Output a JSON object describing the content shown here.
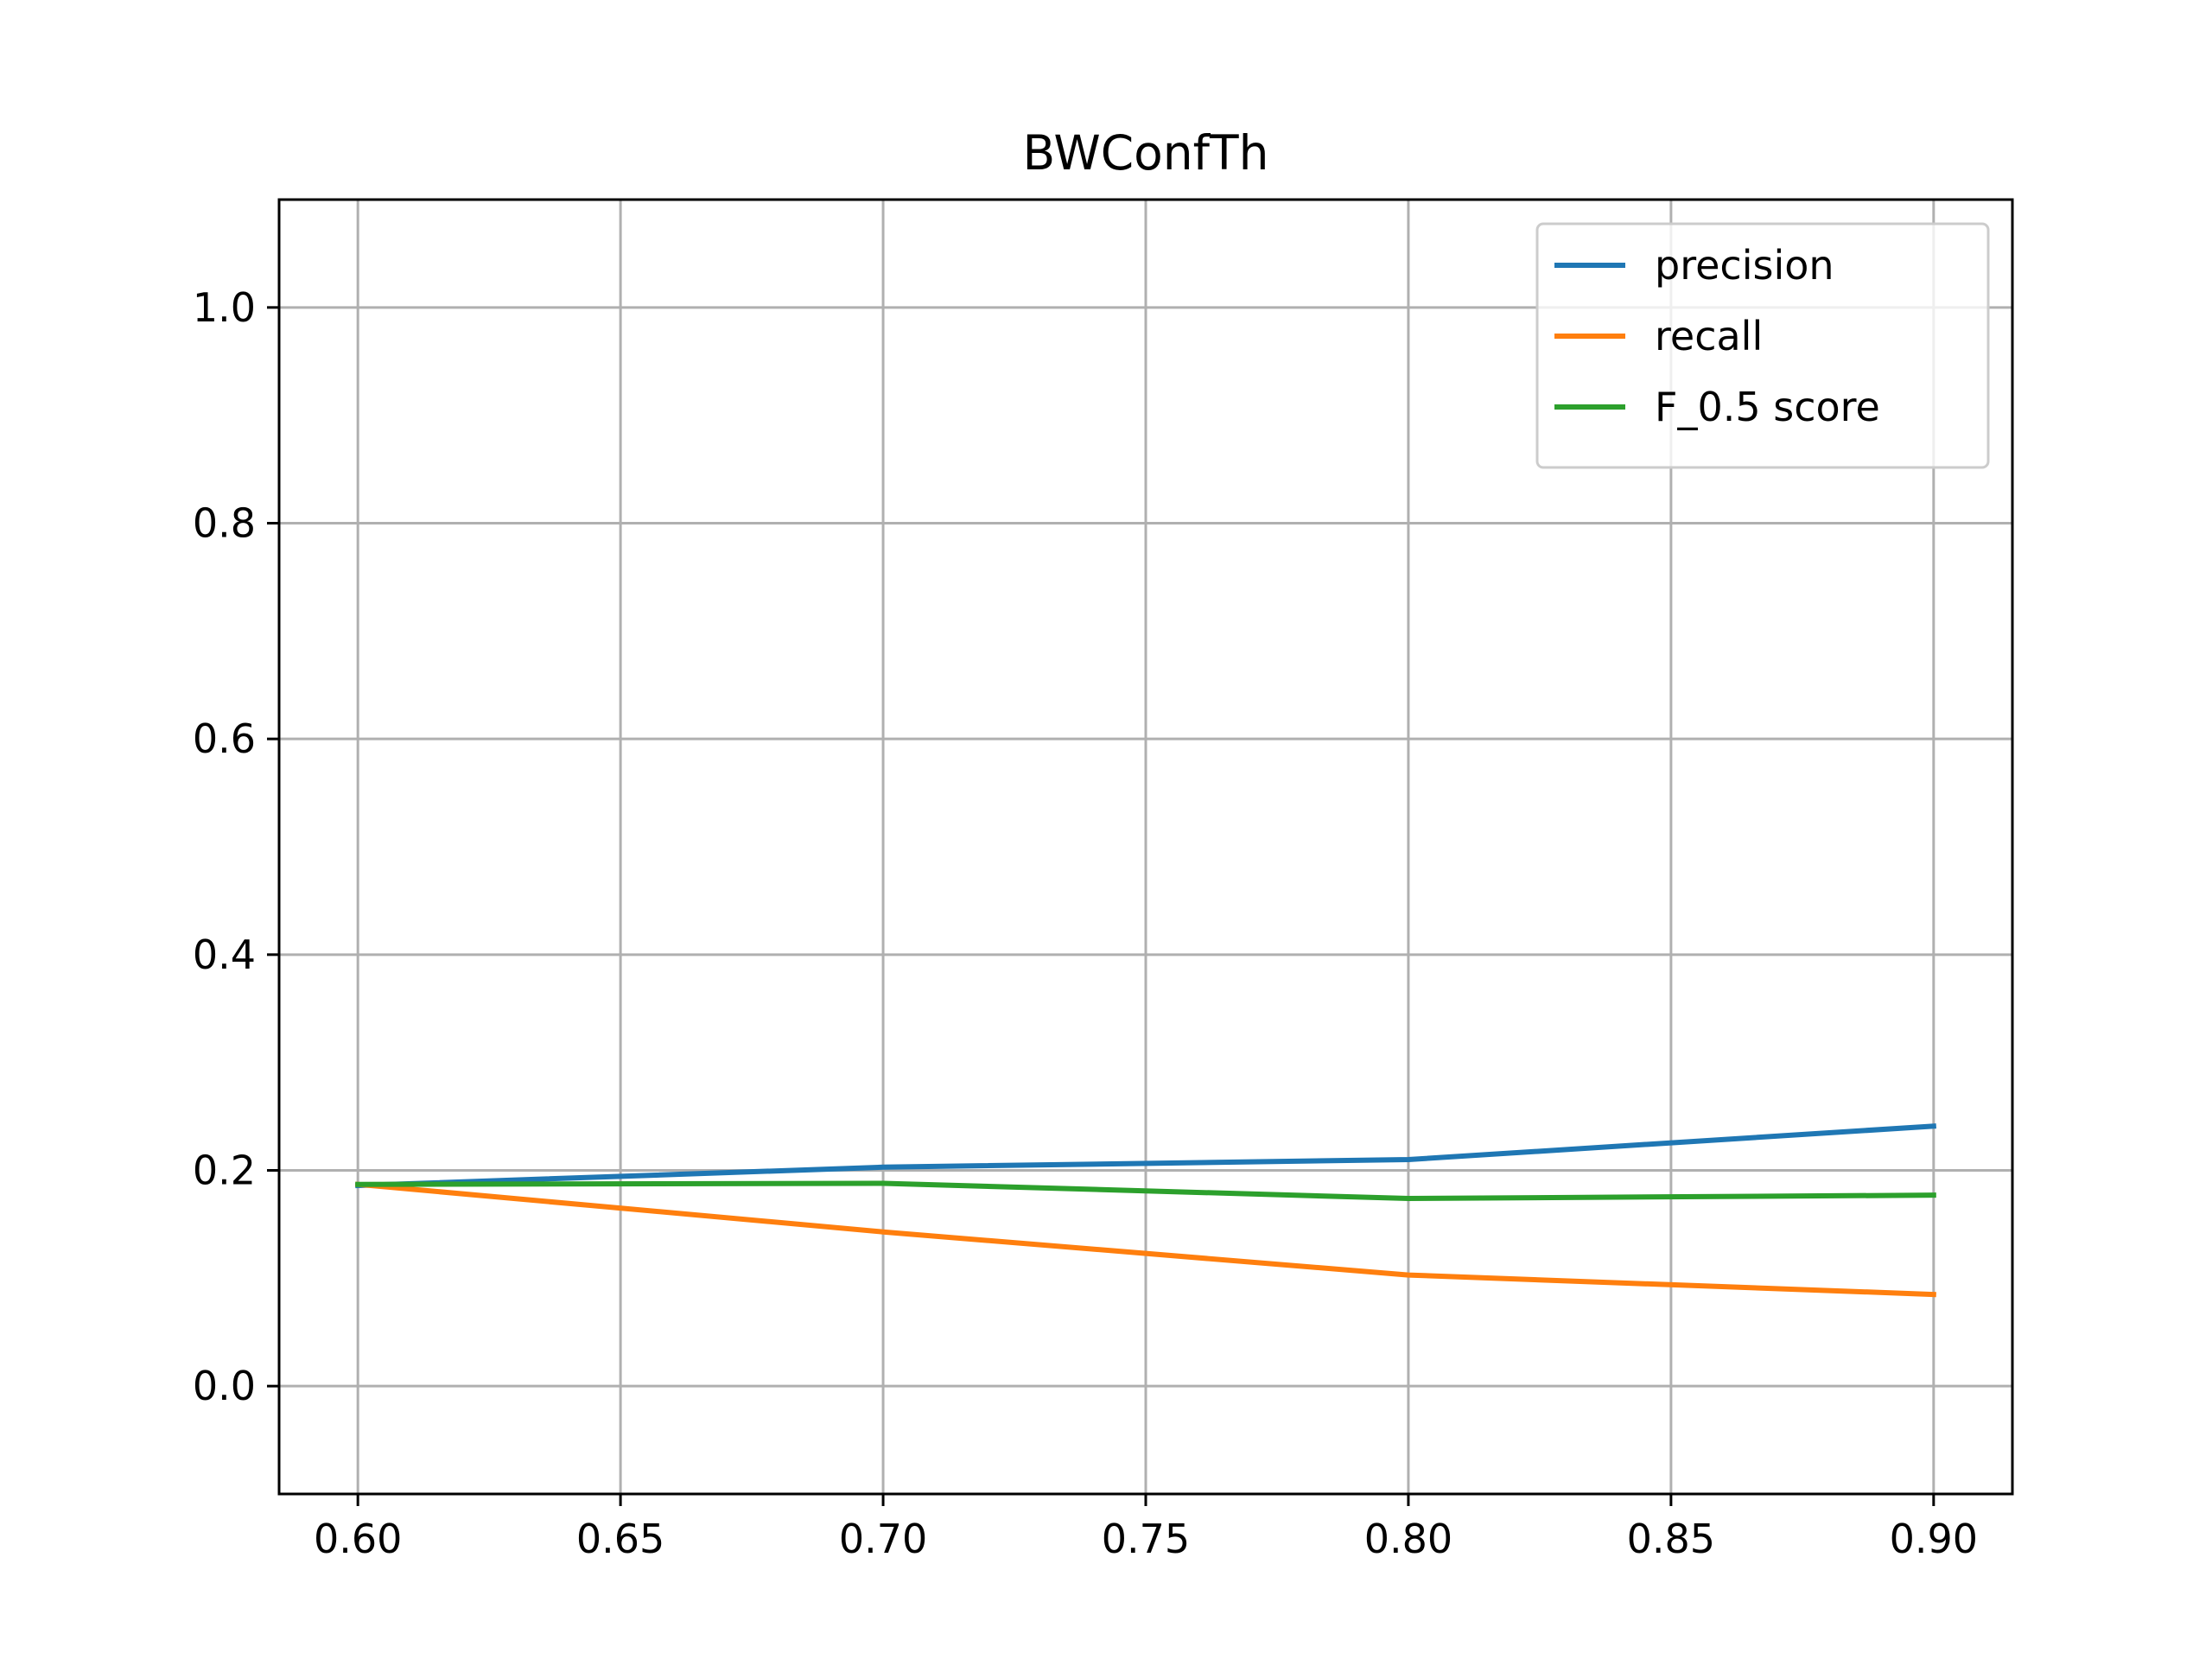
{
  "chart_data": {
    "type": "line",
    "title": "BWConfTh",
    "xlabel": "",
    "ylabel": "",
    "x": [
      0.6,
      0.7,
      0.8,
      0.9
    ],
    "xlim": [
      0.585,
      0.915
    ],
    "ylim": [
      -0.1,
      1.1
    ],
    "xticks": [
      0.6,
      0.65,
      0.7,
      0.75,
      0.8,
      0.85,
      0.9
    ],
    "xtick_labels": [
      "0.60",
      "0.65",
      "0.70",
      "0.75",
      "0.80",
      "0.85",
      "0.90"
    ],
    "yticks": [
      0.0,
      0.2,
      0.4,
      0.6,
      0.8,
      1.0
    ],
    "ytick_labels": [
      "0.0",
      "0.2",
      "0.4",
      "0.6",
      "0.8",
      "1.0"
    ],
    "grid": true,
    "legend_position": "top-right",
    "series": [
      {
        "name": "precision",
        "color": "#1f77b4",
        "values": [
          0.186,
          0.203,
          0.21,
          0.241
        ]
      },
      {
        "name": "recall",
        "color": "#ff7f0e",
        "values": [
          0.187,
          0.143,
          0.103,
          0.085
        ]
      },
      {
        "name": "F_0.5 score",
        "color": "#2ca02c",
        "values": [
          0.187,
          0.188,
          0.174,
          0.177
        ]
      }
    ]
  }
}
